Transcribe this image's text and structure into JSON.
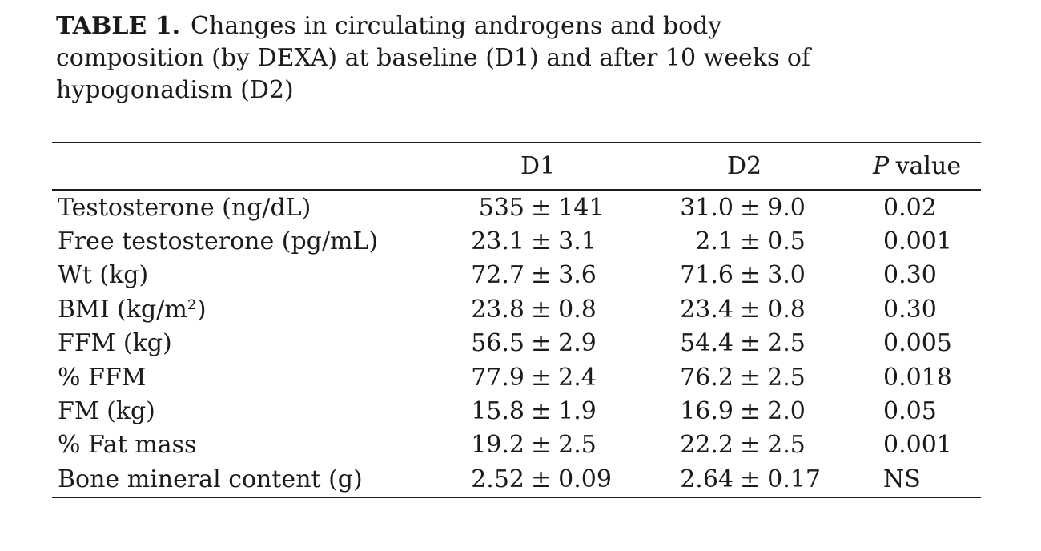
{
  "page": {
    "background_color": "#ffffff",
    "text_color": "#1b1b1b"
  },
  "table": {
    "label": "TABLE 1.",
    "caption_lines": [
      "Changes in circulating androgens and body",
      "composition (by DEXA) at baseline (D1) and after 10 weeks of",
      "hypogonadism (D2)"
    ],
    "columns": {
      "parameter": "",
      "d1": "D1",
      "d2": "D2",
      "p_italic": "P",
      "p_rest": "value"
    },
    "plus_minus": "±",
    "rows": [
      {
        "label": "Testosterone (ng/dL)",
        "d1": {
          "mean": "535",
          "sd": "141"
        },
        "d2": {
          "mean": "31.0",
          "sd": "9.0"
        },
        "p": "0.02"
      },
      {
        "label": "Free testosterone (pg/mL)",
        "d1": {
          "mean": "23.1",
          "sd": "3.1"
        },
        "d2": {
          "mean": "2.1",
          "sd": "0.5"
        },
        "p": "0.001"
      },
      {
        "label": "Wt (kg)",
        "d1": {
          "mean": "72.7",
          "sd": "3.6"
        },
        "d2": {
          "mean": "71.6",
          "sd": "3.0"
        },
        "p": "0.30"
      },
      {
        "label": "BMI (kg/m²)",
        "d1": {
          "mean": "23.8",
          "sd": "0.8"
        },
        "d2": {
          "mean": "23.4",
          "sd": "0.8"
        },
        "p": "0.30"
      },
      {
        "label": "FFM (kg)",
        "d1": {
          "mean": "56.5",
          "sd": "2.9"
        },
        "d2": {
          "mean": "54.4",
          "sd": "2.5"
        },
        "p": "0.005"
      },
      {
        "label": "% FFM",
        "d1": {
          "mean": "77.9",
          "sd": "2.4"
        },
        "d2": {
          "mean": "76.2",
          "sd": "2.5"
        },
        "p": "0.018"
      },
      {
        "label": "FM (kg)",
        "d1": {
          "mean": "15.8",
          "sd": "1.9"
        },
        "d2": {
          "mean": "16.9",
          "sd": "2.0"
        },
        "p": "0.05"
      },
      {
        "label": "% Fat mass",
        "d1": {
          "mean": "19.2",
          "sd": "2.5"
        },
        "d2": {
          "mean": "22.2",
          "sd": "2.5"
        },
        "p": "0.001"
      },
      {
        "label": "Bone mineral content (g)",
        "d1": {
          "mean": "2.52",
          "sd": "0.09"
        },
        "d2": {
          "mean": "2.64",
          "sd": "0.17"
        },
        "p": "NS"
      }
    ]
  }
}
